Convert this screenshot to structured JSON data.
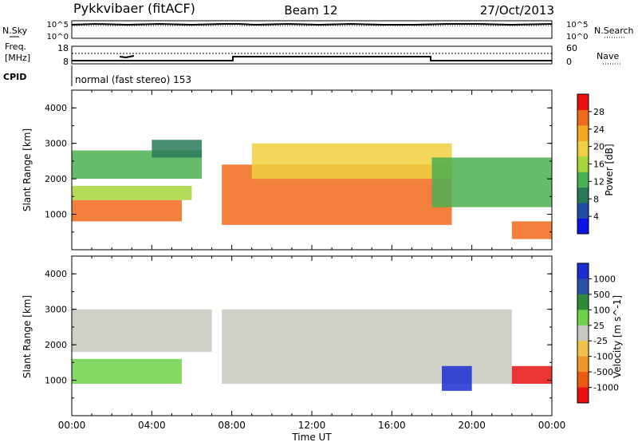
{
  "header": {
    "station": "Pykkvibaer (fitACF)",
    "beam": "Beam 12",
    "date": "27/Oct/2013"
  },
  "top_panels": {
    "nsky_label": "N.Sky",
    "nsky_ticks": [
      "10^5",
      "10^0"
    ],
    "nsearch_label": "N.Search",
    "nsearch_ticks": [
      "10^5",
      "10^0"
    ],
    "freq_label_1": "Freq.",
    "freq_label_2": "[MHz]",
    "freq_ticks": [
      "18",
      "8"
    ],
    "nave_label": "Nave",
    "nave_ticks": [
      "60",
      "0"
    ],
    "cpid_label": "CPID",
    "cpid_text": "normal (fast stereo) 153"
  },
  "colors": {
    "power": [
      "#0a14e6",
      "#1f4aa8",
      "#2a7a5a",
      "#4caf50",
      "#a6d63a",
      "#f0d040",
      "#f5a623",
      "#f06a1a",
      "#e81010"
    ],
    "velocity": [
      "#1b2ed1",
      "#2a4fa8",
      "#2f8a3a",
      "#6fd24a",
      "#c8c8c0",
      "#f0c24a",
      "#f0962a",
      "#ee5a10",
      "#e81010"
    ]
  },
  "chart_data": [
    {
      "type": "heatmap",
      "name": "Power",
      "xlabel": "",
      "ylabel": "Slant Range [km]",
      "x_range": [
        "00:00",
        "24:00"
      ],
      "ylim": [
        0,
        4500
      ],
      "yticks": [
        "1000",
        "2000",
        "3000",
        "4000"
      ],
      "colorbar": {
        "label": "Power [dB]",
        "ticks": [
          "4",
          "8",
          "12",
          "16",
          "20",
          "24",
          "28"
        ],
        "range": [
          0,
          32
        ]
      },
      "regions": [
        {
          "t0": 0.0,
          "t1": 5.5,
          "r0": 800,
          "r1": 1400,
          "level": 28
        },
        {
          "t0": 0.0,
          "t1": 6.0,
          "r0": 1400,
          "r1": 1800,
          "level": 16
        },
        {
          "t0": 0.0,
          "t1": 6.5,
          "r0": 2000,
          "r1": 2800,
          "level": 14
        },
        {
          "t0": 4.0,
          "t1": 6.5,
          "r0": 2600,
          "r1": 3100,
          "level": 10
        },
        {
          "t0": 7.5,
          "t1": 19.0,
          "r0": 700,
          "r1": 2400,
          "level": 28
        },
        {
          "t0": 9.0,
          "t1": 19.0,
          "r0": 2000,
          "r1": 3000,
          "level": 18
        },
        {
          "t0": 18.0,
          "t1": 24.0,
          "r0": 1200,
          "r1": 2600,
          "level": 14
        },
        {
          "t0": 22.0,
          "t1": 24.0,
          "r0": 300,
          "r1": 800,
          "level": 26
        }
      ]
    },
    {
      "type": "heatmap",
      "name": "Velocity",
      "xlabel": "Time UT",
      "ylabel": "Slant Range [km]",
      "x_range": [
        "00:00",
        "24:00"
      ],
      "xticks": [
        "00:00",
        "04:00",
        "08:00",
        "12:00",
        "16:00",
        "20:00",
        "00:00"
      ],
      "ylim": [
        0,
        4500
      ],
      "yticks": [
        "1000",
        "2000",
        "3000",
        "4000"
      ],
      "colorbar": {
        "label": "Velocity [m s^-1]",
        "ticks": [
          "1000",
          "500",
          "100",
          "25",
          "-25",
          "-100",
          "-500",
          "-1000"
        ]
      },
      "regions": [
        {
          "t0": 0.0,
          "t1": 5.5,
          "r0": 900,
          "r1": 1600,
          "level": 100
        },
        {
          "t0": 0.0,
          "t1": 7.0,
          "r0": 1800,
          "r1": 3000,
          "level": 0
        },
        {
          "t0": 7.5,
          "t1": 22.0,
          "r0": 900,
          "r1": 3000,
          "level": 0
        },
        {
          "t0": 18.5,
          "t1": 20.0,
          "r0": 700,
          "r1": 1400,
          "level": 800
        },
        {
          "t0": 22.0,
          "t1": 24.0,
          "r0": 900,
          "r1": 1400,
          "level": -800
        }
      ]
    }
  ]
}
